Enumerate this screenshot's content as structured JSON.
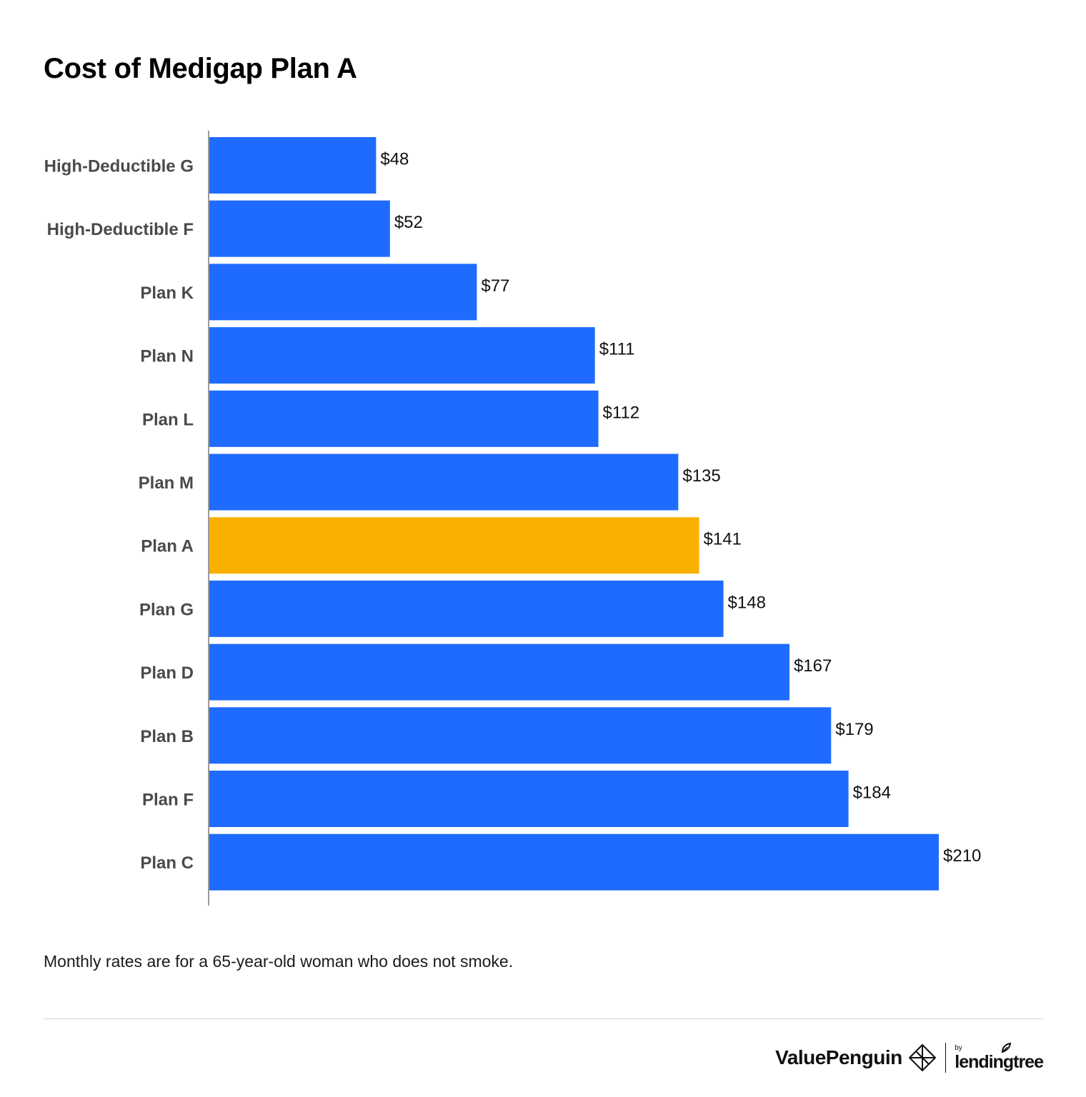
{
  "title": "Cost of Medigap Plan A",
  "footnote": "Monthly rates are for a 65-year-old woman who does not smoke.",
  "branding": {
    "valuepenguin": "ValuePenguin",
    "by": "by",
    "lendingtree": "lendingtree",
    "penguin_icon": "valuepenguin-diamond-logo-icon",
    "leaf_icon": "lendingtree-leaf-icon"
  },
  "colors": {
    "default_bar": "#1f6bff",
    "highlight_bar": "#f9b000",
    "axis": "#9a9a9a",
    "divider": "#d8d8d8"
  },
  "chart_data": {
    "type": "bar",
    "orientation": "horizontal",
    "title": "Cost of Medigap Plan A",
    "xlabel": "",
    "ylabel": "",
    "grid": false,
    "legend": "none",
    "xlim": [
      0,
      210
    ],
    "categories": [
      "High-Deductible G",
      "High-Deductible F",
      "Plan K",
      "Plan N",
      "Plan L",
      "Plan M",
      "Plan A",
      "Plan G",
      "Plan D",
      "Plan B",
      "Plan F",
      "Plan C"
    ],
    "values": [
      48,
      52,
      77,
      111,
      112,
      135,
      141,
      148,
      167,
      179,
      184,
      210
    ],
    "value_labels": [
      "$48",
      "$52",
      "$77",
      "$111",
      "$112",
      "$135",
      "$141",
      "$148",
      "$167",
      "$179",
      "$184",
      "$210"
    ],
    "highlight": "Plan A"
  }
}
